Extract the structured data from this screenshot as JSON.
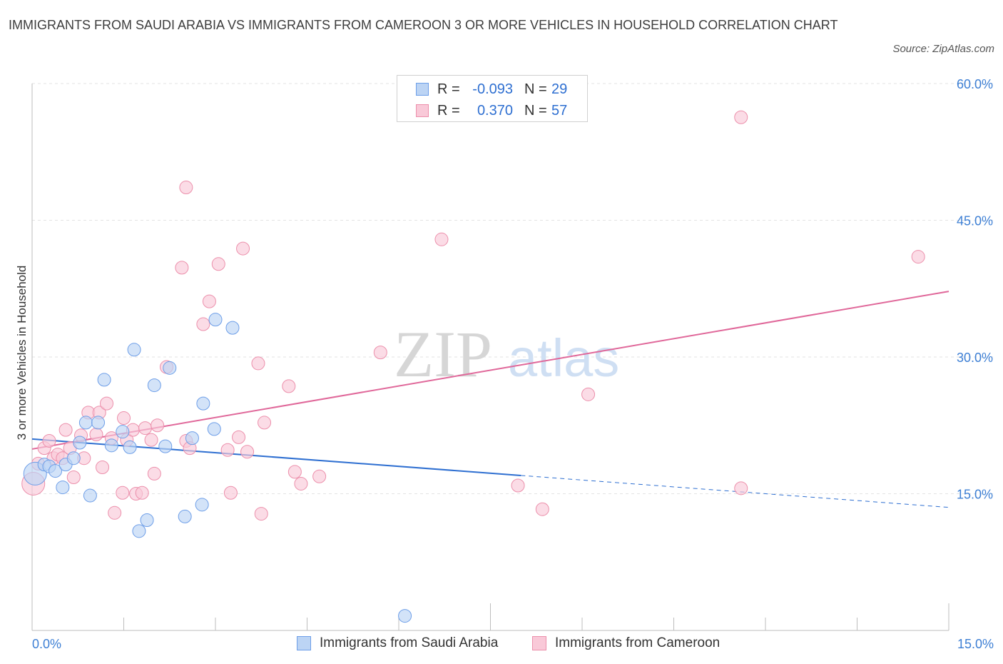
{
  "title": "IMMIGRANTS FROM SAUDI ARABIA VS IMMIGRANTS FROM CAMEROON 3 OR MORE VEHICLES IN HOUSEHOLD CORRELATION CHART",
  "source": "Source: ZipAtlas.com",
  "watermark": {
    "zip": "ZIP",
    "atlas": "atlas"
  },
  "stats": [
    {
      "r_label": "R =",
      "r_value": "-0.093",
      "n_label": "N =",
      "n_value": "29"
    },
    {
      "r_label": "R =",
      "r_value": "0.370",
      "n_label": "N =",
      "n_value": "57"
    }
  ],
  "legend": [
    {
      "label": "Immigrants from Saudi Arabia"
    },
    {
      "label": "Immigrants from Cameroon"
    }
  ],
  "colors": {
    "saudi_fill": "#bcd4f4",
    "saudi_stroke": "#6d9ee8",
    "saudi_line": "#2e6fd1",
    "cameroon_fill": "#f9c9d8",
    "cameroon_stroke": "#ec8fab",
    "cameroon_line": "#e0689a",
    "axis_text": "#3d7fd4",
    "grid": "#e3e3e3"
  },
  "chart_data": {
    "type": "scatter",
    "title": "IMMIGRANTS FROM SAUDI ARABIA VS IMMIGRANTS FROM CAMEROON 3 OR MORE VEHICLES IN HOUSEHOLD CORRELATION CHART",
    "xlabel": "",
    "ylabel": "3 or more Vehicles in Household",
    "xlim": [
      0,
      15
    ],
    "ylim": [
      0,
      60
    ],
    "x_tick_labels": [
      {
        "value": 0,
        "label": "0.0%"
      },
      {
        "value": 15,
        "label": "15.0%"
      }
    ],
    "y_tick_labels": [
      {
        "value": 15,
        "label": "15.0%"
      },
      {
        "value": 30,
        "label": "30.0%"
      },
      {
        "value": 45,
        "label": "45.0%"
      },
      {
        "value": 60,
        "label": "60.0%"
      }
    ],
    "grid": true,
    "legend_position": "bottom",
    "series": [
      {
        "name": "Immigrants from Saudi Arabia",
        "r": -0.093,
        "n": 29,
        "trend": {
          "x0": 0.0,
          "y0": 21.0,
          "x_solid_end": 8.0,
          "y_solid_end": 17.0,
          "x1": 15.0,
          "y1": 13.5
        },
        "points": [
          [
            0.05,
            17.2,
            16
          ],
          [
            0.2,
            18.2,
            10
          ],
          [
            0.28,
            18.0,
            10
          ],
          [
            0.38,
            17.5,
            10
          ],
          [
            0.5,
            15.7,
            10
          ],
          [
            0.55,
            18.2,
            10
          ],
          [
            0.68,
            18.9,
            10
          ],
          [
            0.78,
            20.6,
            10
          ],
          [
            0.88,
            22.8,
            10
          ],
          [
            0.95,
            14.8,
            10
          ],
          [
            1.08,
            22.8,
            10
          ],
          [
            1.18,
            27.5,
            10
          ],
          [
            1.3,
            20.3,
            10
          ],
          [
            1.48,
            21.8,
            10
          ],
          [
            1.6,
            20.1,
            10
          ],
          [
            1.67,
            30.8,
            10
          ],
          [
            1.75,
            10.9,
            10
          ],
          [
            1.88,
            12.1,
            10
          ],
          [
            2.0,
            26.9,
            10
          ],
          [
            2.18,
            20.2,
            10
          ],
          [
            2.25,
            28.8,
            10
          ],
          [
            2.5,
            12.5,
            10
          ],
          [
            2.62,
            21.1,
            10
          ],
          [
            2.78,
            13.8,
            10
          ],
          [
            2.8,
            24.9,
            10
          ],
          [
            2.98,
            22.1,
            10
          ],
          [
            3.0,
            34.1,
            10
          ],
          [
            3.28,
            33.2,
            10
          ],
          [
            6.1,
            1.6,
            10
          ]
        ]
      },
      {
        "name": "Immigrants from Cameroon",
        "r": 0.37,
        "n": 57,
        "trend": {
          "x0": 0.0,
          "y0": 19.9,
          "x1": 15.0,
          "y1": 37.2
        },
        "points": [
          [
            0.02,
            16.1,
            16
          ],
          [
            0.1,
            18.3,
            10
          ],
          [
            0.2,
            20.0,
            10
          ],
          [
            0.28,
            20.8,
            10
          ],
          [
            0.35,
            18.9,
            10
          ],
          [
            0.42,
            19.3,
            10
          ],
          [
            0.5,
            18.9,
            10
          ],
          [
            0.55,
            22.0,
            10
          ],
          [
            0.62,
            20.0,
            10
          ],
          [
            0.68,
            16.8,
            10
          ],
          [
            0.8,
            21.4,
            10
          ],
          [
            0.85,
            18.9,
            10
          ],
          [
            0.92,
            23.9,
            10
          ],
          [
            1.05,
            21.5,
            10
          ],
          [
            1.1,
            23.9,
            10
          ],
          [
            1.15,
            17.9,
            10
          ],
          [
            1.22,
            24.9,
            10
          ],
          [
            1.3,
            21.1,
            10
          ],
          [
            1.35,
            12.9,
            10
          ],
          [
            1.48,
            15.1,
            10
          ],
          [
            1.5,
            23.3,
            10
          ],
          [
            1.55,
            20.9,
            10
          ],
          [
            1.65,
            22.0,
            10
          ],
          [
            1.7,
            15.0,
            10
          ],
          [
            1.8,
            15.1,
            10
          ],
          [
            1.85,
            22.2,
            10
          ],
          [
            1.95,
            20.9,
            10
          ],
          [
            2.0,
            17.2,
            10
          ],
          [
            2.05,
            22.5,
            10
          ],
          [
            2.2,
            28.9,
            10
          ],
          [
            2.45,
            39.8,
            10
          ],
          [
            2.52,
            20.8,
            10
          ],
          [
            2.52,
            48.6,
            10
          ],
          [
            2.58,
            20.0,
            10
          ],
          [
            2.8,
            33.6,
            10
          ],
          [
            2.9,
            36.1,
            10
          ],
          [
            3.05,
            40.2,
            10
          ],
          [
            3.2,
            19.8,
            10
          ],
          [
            3.25,
            15.1,
            10
          ],
          [
            3.38,
            21.2,
            10
          ],
          [
            3.45,
            41.9,
            10
          ],
          [
            3.52,
            19.6,
            10
          ],
          [
            3.7,
            29.3,
            10
          ],
          [
            3.75,
            12.8,
            10
          ],
          [
            3.8,
            22.8,
            10
          ],
          [
            4.2,
            26.8,
            10
          ],
          [
            4.3,
            17.4,
            10
          ],
          [
            4.4,
            16.1,
            10
          ],
          [
            4.7,
            16.9,
            10
          ],
          [
            5.7,
            30.5,
            10
          ],
          [
            6.7,
            42.9,
            10
          ],
          [
            7.95,
            15.9,
            10
          ],
          [
            8.35,
            13.3,
            10
          ],
          [
            9.1,
            25.9,
            10
          ],
          [
            11.6,
            15.6,
            10
          ],
          [
            11.6,
            56.3,
            10
          ],
          [
            14.5,
            41.0,
            10
          ]
        ]
      }
    ]
  }
}
